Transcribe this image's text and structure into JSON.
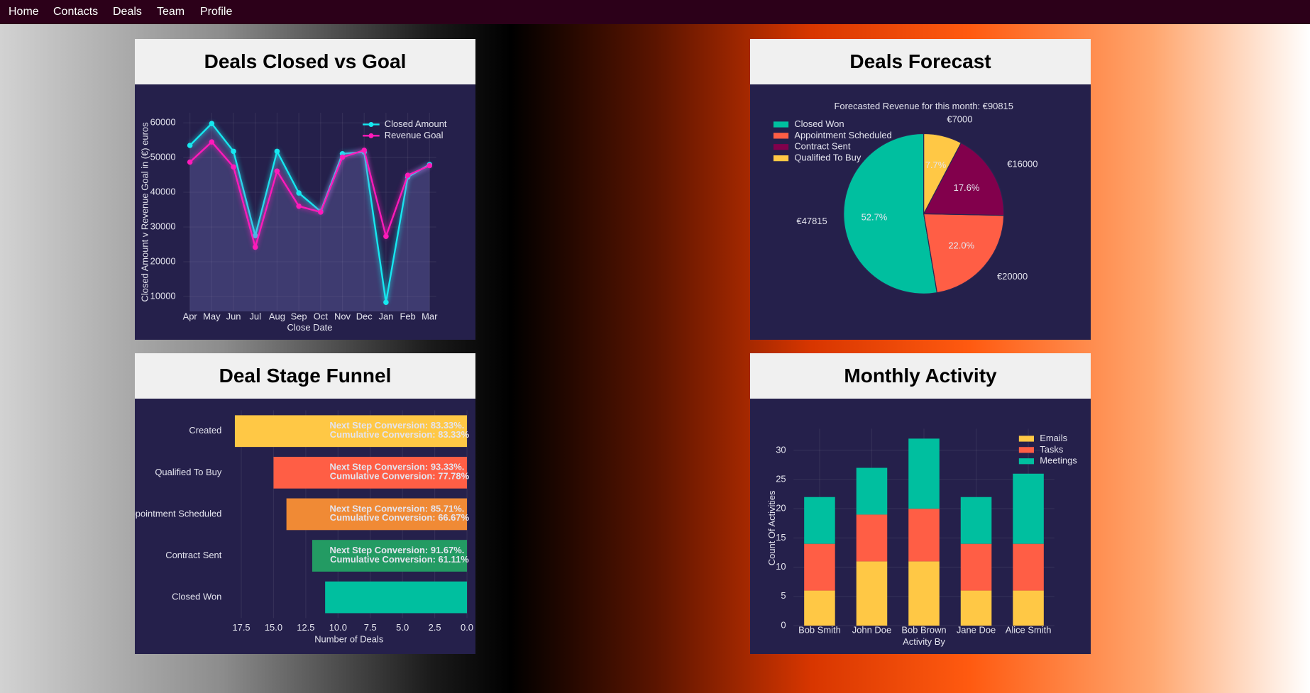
{
  "nav": [
    "Home",
    "Contacts",
    "Deals",
    "Team",
    "Profile"
  ],
  "chart_data": [
    {
      "type": "line",
      "title": "Deals Closed vs Goal",
      "xlabel": "Close Date",
      "ylabel": "Closed Amount v Revenue Goal in (€) euros",
      "categories": [
        "Apr",
        "May",
        "Jun",
        "Jul",
        "Aug",
        "Sep",
        "Oct",
        "Nov",
        "Dec",
        "Jan",
        "Feb",
        "Mar"
      ],
      "series": [
        {
          "name": "Closed Amount",
          "color": "#16e8f0",
          "fill": true,
          "values": [
            53500,
            59800,
            51800,
            27500,
            51800,
            39800,
            34500,
            51100,
            51600,
            8300,
            44400,
            48000
          ]
        },
        {
          "name": "Revenue Goal",
          "color": "#ff1aba",
          "values": [
            48700,
            54500,
            47300,
            24200,
            46100,
            36000,
            34300,
            50100,
            52100,
            27300,
            44900,
            47700
          ]
        }
      ],
      "ylim": [
        5700,
        62900
      ],
      "yticks": [
        10000,
        20000,
        30000,
        40000,
        50000,
        60000
      ],
      "grid": true,
      "legend": "top-right"
    },
    {
      "type": "pie",
      "title": "Deals Forecast",
      "subtitle": "Forecasted Revenue for this month: €90815",
      "labels": [
        "Closed Won",
        "Appointment Scheduled",
        "Contract Sent",
        "Qualified To Buy"
      ],
      "values": [
        47815,
        20000,
        16000,
        7000
      ],
      "value_labels": [
        "€47815",
        "€20000",
        "€16000",
        "€7000"
      ],
      "percent_labels": [
        "52.7%",
        "22.0%",
        "17.6%",
        "7.7%"
      ],
      "colors": [
        "#00bf9f",
        "#ff5e45",
        "#82004c",
        "#ffc845"
      ],
      "direction": "counterclockwise",
      "legend": "top-left"
    },
    {
      "type": "funnel",
      "title": "Deal Stage Funnel",
      "xlabel": "Number of Deals",
      "categories": [
        "Created",
        "Qualified To Buy",
        "Appointment Scheduled",
        "Contract Sent",
        "Closed Won"
      ],
      "values": [
        18,
        15,
        14,
        12,
        11
      ],
      "colors": [
        "#ffc845",
        "#ff5e45",
        "#f08a35",
        "#239b63",
        "#00bf9f"
      ],
      "annotations": [
        [
          "Next Step Conversion: 83.33%.",
          "Cumulative Conversion: 83.33%"
        ],
        [
          "Next Step Conversion: 93.33%.",
          "Cumulative Conversion: 77.78%"
        ],
        [
          "Next Step Conversion: 85.71%.",
          "Cumulative Conversion: 66.67%"
        ],
        [
          "Next Step Conversion: 91.67%.",
          "Cumulative Conversion: 61.11%"
        ],
        null
      ],
      "xlim": [
        18.7,
        -0.4
      ],
      "xticks": [
        17.5,
        {
          "value": 15,
          "label": "15.0"
        },
        12.5,
        {
          "value": 10,
          "label": "10.0"
        },
        7.5,
        {
          "value": 5,
          "label": "5.0"
        },
        2.5,
        {
          "value": 0,
          "label": "0.0"
        }
      ],
      "grid": true
    },
    {
      "type": "stacked_bar",
      "title": "Monthly Activity",
      "xlabel": "Activity By",
      "ylabel": "Count Of Activities",
      "categories": [
        "Bob Smith",
        "John Doe",
        "Bob Brown",
        "Jane Doe",
        "Alice Smith"
      ],
      "series": [
        {
          "name": "Emails",
          "color": "#ffc845",
          "values": [
            6,
            11,
            11,
            6,
            6
          ]
        },
        {
          "name": "Tasks",
          "color": "#ff5e45",
          "values": [
            8,
            8,
            9,
            8,
            8
          ]
        },
        {
          "name": "Meetings",
          "color": "#00bf9f",
          "values": [
            8,
            8,
            12,
            8,
            12
          ]
        }
      ],
      "ylim": [
        0,
        33.7
      ],
      "yticks": [
        0,
        5,
        10,
        15,
        20,
        25,
        30
      ],
      "grid": true,
      "legend": "top-right"
    }
  ]
}
